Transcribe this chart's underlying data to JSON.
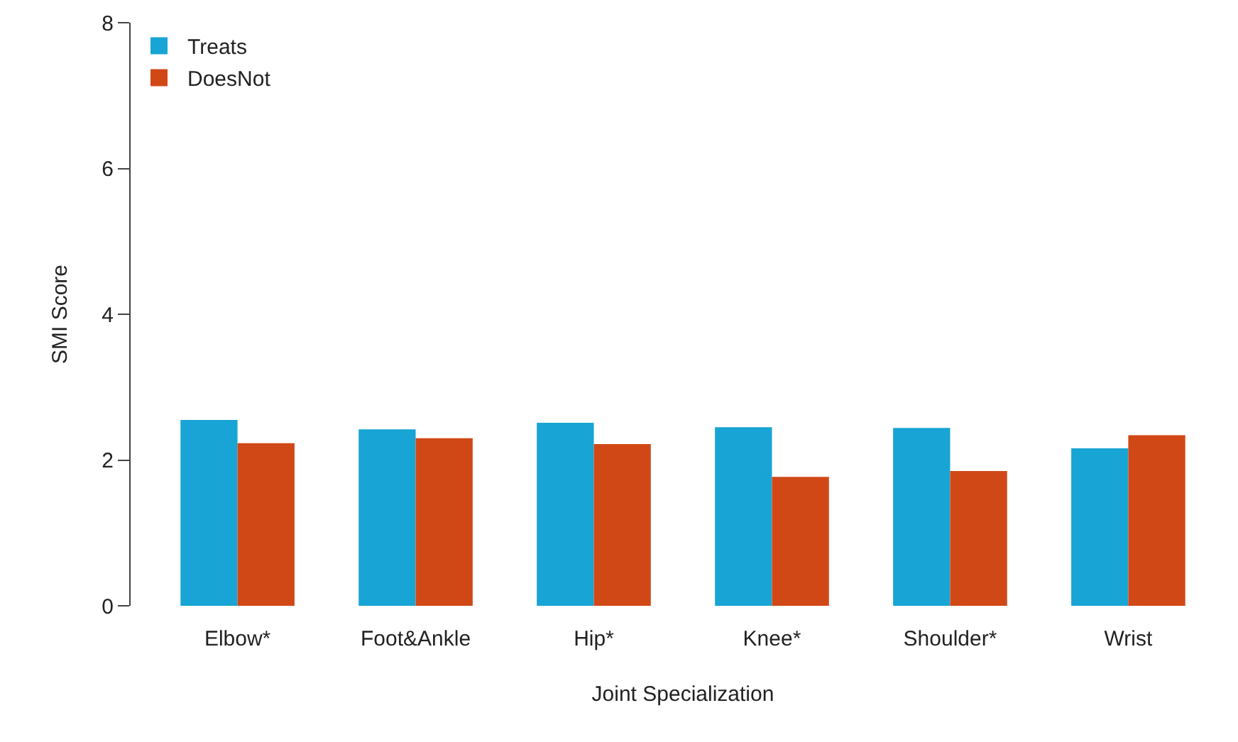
{
  "chart_data": {
    "type": "bar",
    "xlabel": "Joint Specialization",
    "ylabel": "SMI Score",
    "categories": [
      "Elbow*",
      "Foot&Ankle",
      "Hip*",
      "Knee*",
      "Shoulder*",
      "Wrist"
    ],
    "series": [
      {
        "name": "Treats",
        "color": "#18a4d4",
        "values": [
          2.55,
          2.42,
          2.51,
          2.45,
          2.44,
          2.16
        ]
      },
      {
        "name": "DoesNot",
        "color": "#d14817",
        "values": [
          2.23,
          2.3,
          2.22,
          1.77,
          1.85,
          2.34
        ]
      }
    ],
    "ylim": [
      0,
      8
    ],
    "yticks": [
      0,
      2,
      4,
      6,
      8
    ],
    "grid": false,
    "legend": "top left"
  }
}
